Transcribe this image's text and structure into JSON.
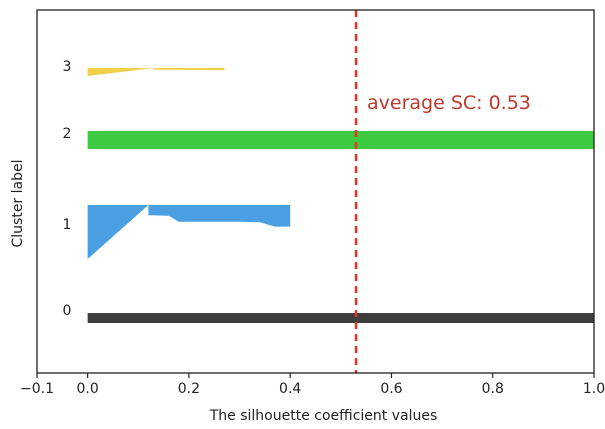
{
  "chart_data": {
    "type": "area",
    "title": "",
    "xlabel": "The silhouette coefficient values",
    "ylabel": "Cluster label",
    "xlim": [
      -0.1,
      1.0
    ],
    "x_ticks": [
      -0.1,
      0.0,
      0.2,
      0.4,
      0.6,
      0.8,
      1.0
    ],
    "x_tick_labels": [
      "−0.1",
      "0.0",
      "0.2",
      "0.4",
      "0.6",
      "0.8",
      "1.0"
    ],
    "grid": false,
    "average_sc": 0.53,
    "average_color": "#e8332a",
    "annotation": "average SC: 0.53",
    "annotation_color": "#c0392b",
    "clusters": [
      {
        "label": "0",
        "color": "#3d3d3d",
        "profile": [
          [
            0.0,
            1.0
          ],
          [
            1.0,
            1.0
          ]
        ]
      },
      {
        "label": "1",
        "color": "#4a9fe3",
        "profile": [
          [
            0.0,
            0.4
          ],
          [
            0.4,
            0.4
          ],
          [
            0.4,
            0.37
          ],
          [
            0.32,
            0.34
          ],
          [
            0.31,
            0.3
          ],
          [
            0.31,
            0.18
          ],
          [
            0.2,
            0.16
          ],
          [
            0.19,
            0.12
          ],
          [
            0.0,
            0.12
          ]
        ]
      },
      {
        "label": "2",
        "color": "#3ec943",
        "profile": [
          [
            0.0,
            1.0
          ],
          [
            1.0,
            1.0
          ]
        ]
      },
      {
        "label": "3",
        "color": "#f2cf49",
        "profile": [
          [
            0.0,
            0.27
          ],
          [
            0.27,
            0.27
          ],
          [
            0.2,
            0.13
          ],
          [
            0.0,
            0.13
          ]
        ]
      }
    ]
  }
}
